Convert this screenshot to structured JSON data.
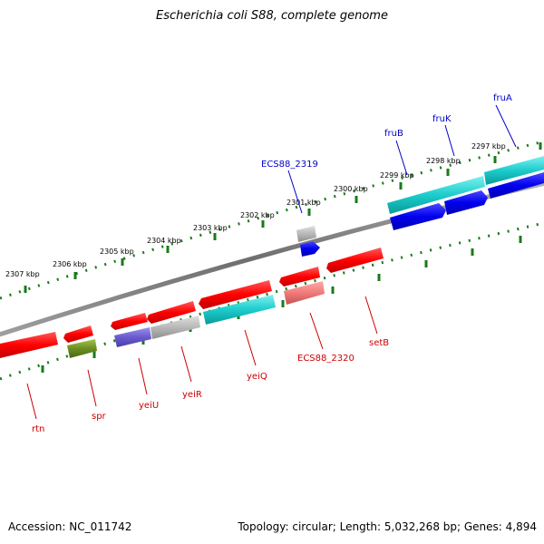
{
  "title": "Escherichia coli S88, complete genome",
  "footer": {
    "accession": "Accession: NC_011742",
    "summary": "Topology: circular; Length: 5,032,268 bp; Genes: 4,894"
  },
  "colors": {
    "backbone": "#7f7f7f",
    "tick": "#1a7a1a",
    "label_top": "#0000cc",
    "label_bottom": "#cc0000",
    "scale_text": "#000000"
  },
  "scale_labels": [
    "2297 kbp",
    "2298 kbp",
    "2299 kbp",
    "2300 kbp",
    "2301 kbp",
    "2302 kbp",
    "2303 kbp",
    "2304 kbp",
    "2305 kbp",
    "2306 kbp",
    "2307 kbp"
  ],
  "gene_labels_top": [
    "fruA",
    "fruK",
    "fruB",
    "ECS88_2319"
  ],
  "gene_labels_bottom": [
    "setB",
    "ECS88_2320",
    "yeiQ",
    "yeiR",
    "yeiU",
    "spr",
    "rtn"
  ]
}
